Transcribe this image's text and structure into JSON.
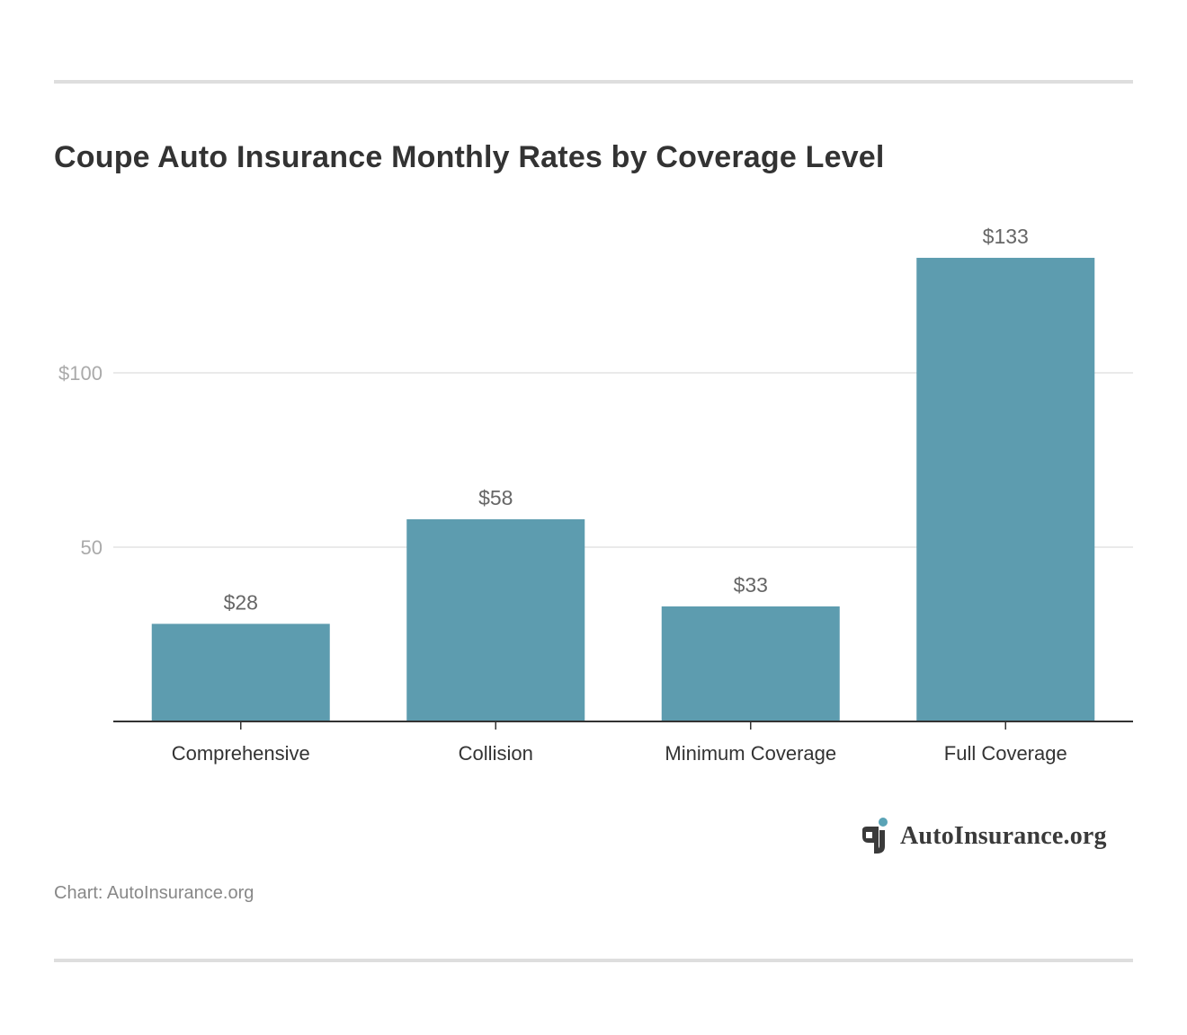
{
  "title": "Coupe Auto Insurance Monthly Rates by Coverage Level",
  "caption": "Chart: AutoInsurance.org",
  "logo": {
    "text": "AutoInsurance.org",
    "icon": "autoinsurance-logo-icon",
    "accent": "#5aa3b6"
  },
  "colors": {
    "bar": "#5d9caf",
    "grid": "#e3e3e3",
    "axis": "#333333",
    "tick_label": "#aaaaaa",
    "value_label": "#666666",
    "category_label": "#333333"
  },
  "chart_data": {
    "type": "bar",
    "title": "Coupe Auto Insurance Monthly Rates by Coverage Level",
    "categories": [
      "Comprehensive",
      "Collision",
      "Minimum Coverage",
      "Full Coverage"
    ],
    "values": [
      28,
      58,
      33,
      133
    ],
    "value_labels": [
      "$28",
      "$58",
      "$33",
      "$133"
    ],
    "ylim": [
      0,
      140
    ],
    "yticks": [
      50,
      100
    ],
    "ytick_labels": [
      "50",
      "$100"
    ],
    "xlabel": "",
    "ylabel": "",
    "grid": true
  }
}
